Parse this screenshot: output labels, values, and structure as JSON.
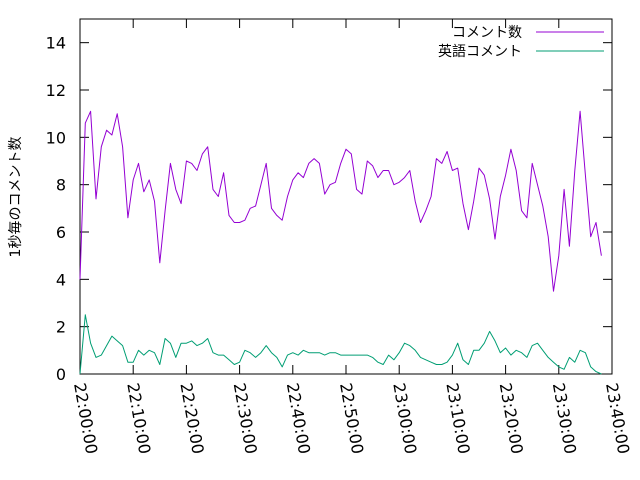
{
  "chart_data": {
    "type": "line",
    "ylabel": "1秒毎のコメント数",
    "ylim": [
      0,
      15
    ],
    "yticks": [
      "0",
      "2",
      "4",
      "6",
      "8",
      "10",
      "12",
      "14"
    ],
    "xlim": [
      "22:00:00",
      "23:40:00"
    ],
    "xticks": [
      "22:00:00",
      "22:10:00",
      "22:20:00",
      "22:30:00",
      "22:40:00",
      "22:50:00",
      "23:00:00",
      "23:10:00",
      "23:20:00",
      "23:30:00",
      "23:40:00"
    ],
    "legend_position": "top-right",
    "grid": false,
    "x_step_seconds": 60,
    "series": [
      {
        "name": "コメント数",
        "color": "#9400d3",
        "x_start": "22:00:00",
        "values": [
          4.0,
          10.6,
          11.1,
          7.4,
          9.6,
          10.3,
          10.1,
          11.0,
          9.6,
          6.6,
          8.2,
          8.9,
          7.7,
          8.2,
          7.3,
          4.7,
          6.9,
          8.9,
          7.8,
          7.2,
          9.0,
          8.9,
          8.6,
          9.3,
          9.6,
          7.8,
          7.5,
          8.5,
          6.7,
          6.4,
          6.4,
          6.5,
          7.0,
          7.1,
          8.0,
          8.9,
          7.0,
          6.7,
          6.5,
          7.5,
          8.2,
          8.5,
          8.3,
          8.9,
          9.1,
          8.9,
          7.6,
          8.0,
          8.1,
          8.9,
          9.5,
          9.3,
          7.8,
          7.6,
          9.0,
          8.8,
          8.3,
          8.6,
          8.6,
          8.0,
          8.1,
          8.3,
          8.6,
          7.3,
          6.4,
          6.9,
          7.5,
          9.1,
          8.9,
          9.4,
          8.6,
          8.7,
          7.2,
          6.1,
          7.3,
          8.7,
          8.4,
          7.4,
          5.7,
          7.5,
          8.4,
          9.5,
          8.6,
          6.9,
          6.6,
          8.9,
          8.0,
          7.1,
          5.8,
          3.5,
          5.0,
          7.8,
          5.4,
          8.6,
          11.1,
          8.4,
          5.8,
          6.4,
          5.0
        ]
      },
      {
        "name": "英語コメント",
        "color": "#009e73",
        "x_start": "22:00:00",
        "values": [
          0.0,
          2.5,
          1.3,
          0.7,
          0.8,
          1.2,
          1.6,
          1.4,
          1.2,
          0.5,
          0.5,
          1.0,
          0.8,
          1.0,
          0.9,
          0.4,
          1.5,
          1.3,
          0.7,
          1.3,
          1.3,
          1.4,
          1.2,
          1.3,
          1.5,
          0.9,
          0.8,
          0.8,
          0.6,
          0.4,
          0.5,
          1.0,
          0.9,
          0.7,
          0.9,
          1.2,
          0.9,
          0.7,
          0.3,
          0.8,
          0.9,
          0.8,
          1.0,
          0.9,
          0.9,
          0.9,
          0.8,
          0.9,
          0.9,
          0.8,
          0.8,
          0.8,
          0.8,
          0.8,
          0.8,
          0.7,
          0.5,
          0.4,
          0.8,
          0.6,
          0.9,
          1.3,
          1.2,
          1.0,
          0.7,
          0.6,
          0.5,
          0.4,
          0.4,
          0.5,
          0.8,
          1.3,
          0.6,
          0.4,
          1.0,
          1.0,
          1.3,
          1.8,
          1.4,
          0.9,
          1.1,
          0.8,
          1.0,
          0.9,
          0.7,
          1.2,
          1.3,
          1.0,
          0.7,
          0.5,
          0.3,
          0.2,
          0.7,
          0.5,
          1.0,
          0.9,
          0.3,
          0.1,
          0.0
        ]
      }
    ]
  }
}
